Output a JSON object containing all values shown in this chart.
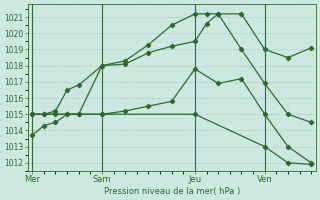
{
  "bg_color": "#cce8e0",
  "grid_color_major": "#aacccc",
  "grid_color_minor": "#bbdddd",
  "line_color": "#2d6b2d",
  "ylabel_text": "Pression niveau de la mer( hPa )",
  "ylim": [
    1011.5,
    1021.8
  ],
  "yticks": [
    1012,
    1013,
    1014,
    1015,
    1016,
    1017,
    1018,
    1019,
    1020,
    1021
  ],
  "xlim": [
    -0.2,
    12.2
  ],
  "xtick_labels": [
    "Mer",
    "Sam",
    "Jeu",
    "Ven"
  ],
  "xtick_positions": [
    0,
    3,
    7,
    10
  ],
  "vlines": [
    0,
    3,
    7,
    10
  ],
  "line1_x": [
    0,
    0.5,
    1,
    1.5,
    2,
    3,
    4,
    5,
    6,
    7,
    7.5,
    8,
    9,
    10,
    11,
    12
  ],
  "line1_y": [
    1013.7,
    1014.3,
    1014.5,
    1015.0,
    1015.0,
    1018.0,
    1018.1,
    1018.8,
    1019.2,
    1019.5,
    1020.6,
    1021.2,
    1021.2,
    1019.0,
    1018.5,
    1019.1
  ],
  "line2_x": [
    0,
    0.5,
    1,
    1.5,
    2,
    3,
    4,
    5,
    6,
    7,
    7.5,
    8,
    9,
    10,
    11,
    12
  ],
  "line2_y": [
    1015.0,
    1015.0,
    1015.2,
    1016.5,
    1016.8,
    1018.0,
    1018.3,
    1019.3,
    1020.5,
    1021.2,
    1021.2,
    1021.2,
    1019.0,
    1016.9,
    1015.0,
    1014.5
  ],
  "line3_x": [
    0,
    0.5,
    1,
    1.5,
    2,
    3,
    4,
    5,
    6,
    7,
    8,
    9,
    10,
    11,
    12
  ],
  "line3_y": [
    1015.0,
    1015.0,
    1015.0,
    1015.0,
    1015.0,
    1015.0,
    1015.2,
    1015.5,
    1015.8,
    1017.8,
    1016.9,
    1017.2,
    1015.0,
    1013.0,
    1012.0
  ],
  "line4_x": [
    0,
    3,
    7,
    10,
    11,
    12
  ],
  "line4_y": [
    1015.0,
    1015.0,
    1015.0,
    1013.0,
    1012.0,
    1011.9
  ]
}
